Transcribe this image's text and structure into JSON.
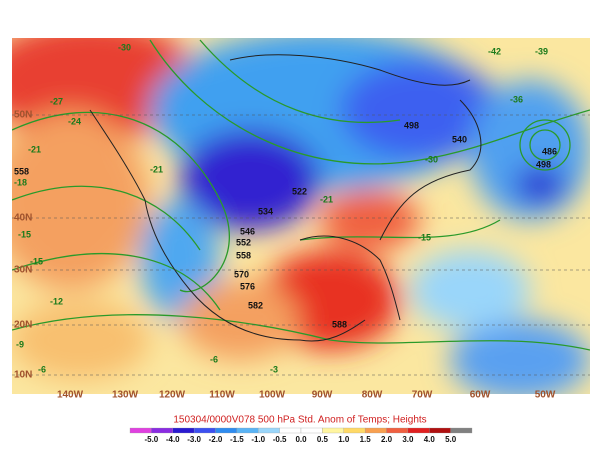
{
  "title": "150304/0000V078 500 hPa Std. Anom of Temps; Heights",
  "colorbar": {
    "labels": [
      "-5.0",
      "-4.0",
      "-3.0",
      "-2.0",
      "-1.5",
      "-1.0",
      "-0.5",
      "0.0",
      "0.5",
      "1.0",
      "1.5",
      "2.0",
      "3.0",
      "4.0",
      "5.0"
    ],
    "colors": [
      "#e040e0",
      "#8a2be2",
      "#2a1ad0",
      "#3c50f0",
      "#2f8cf0",
      "#5ab4f5",
      "#9ad6fa",
      "#ffffff",
      "#ffffff",
      "#fff5a0",
      "#ffd966",
      "#f8a050",
      "#f06040",
      "#e02020",
      "#b01010",
      "#808080"
    ]
  },
  "latitudes": [
    "50N",
    "40N",
    "30N",
    "20N",
    "10N"
  ],
  "longitudes": [
    "140W",
    "130W",
    "120W",
    "110W",
    "100W",
    "90W",
    "80W",
    "70W",
    "60W",
    "50W"
  ],
  "contour_labels": [
    "-30",
    "-27",
    "-24",
    "-21",
    "-21",
    "-18",
    "-15",
    "-15",
    "-12",
    "-9",
    "-6",
    "-6",
    "-3",
    "-30",
    "-36",
    "-39",
    "-42",
    "558",
    "546",
    "552",
    "558",
    "570",
    "576",
    "582",
    "588",
    "498",
    "486",
    "498",
    "522",
    "534",
    "540",
    "-21",
    "-15"
  ]
}
